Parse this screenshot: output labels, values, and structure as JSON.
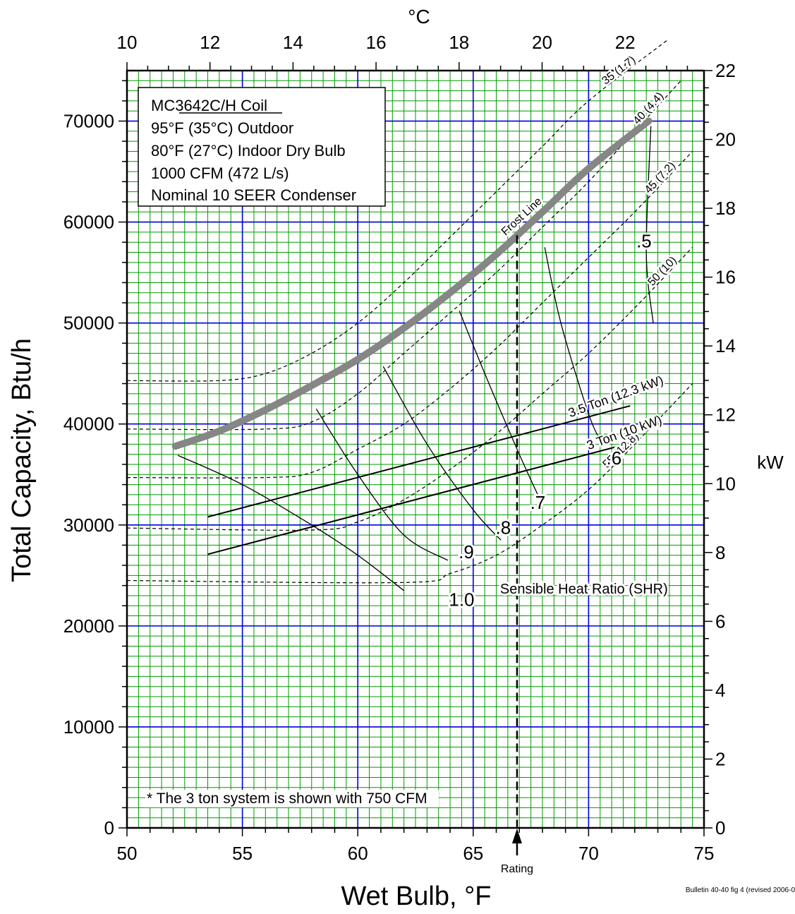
{
  "chart_data": {
    "type": "line",
    "x_axis": {
      "label": "Wet Bulb, °F",
      "range": [
        50,
        75
      ],
      "ticks": [
        50,
        55,
        60,
        65,
        70,
        75
      ]
    },
    "x2_axis": {
      "label": "°C",
      "range": [
        10,
        23.9
      ],
      "ticks": [
        10,
        12,
        14,
        16,
        18,
        20,
        22
      ]
    },
    "y_axis": {
      "label": "Total Capacity, Btu/h",
      "range": [
        0,
        75000
      ],
      "ticks": [
        0,
        10000,
        20000,
        30000,
        40000,
        50000,
        60000,
        70000
      ]
    },
    "y2_axis": {
      "label": "kW",
      "range": [
        0,
        22
      ],
      "ticks": [
        0,
        2,
        4,
        6,
        8,
        10,
        12,
        14,
        16,
        18,
        20,
        22
      ]
    },
    "grid": true,
    "info_box": [
      "MC3642C/H Coil",
      "95°F (35°C) Outdoor",
      "80°F (27°C) Indoor Dry Bulb",
      "1000 CFM (472 L/s)",
      "Nominal 10 SEER Condenser"
    ],
    "footnote": "* The 3 ton system is shown with 750 CFM",
    "bulletin": "Bulletin 40-40 fig 4 (revised 2006-0",
    "rating_label": "Rating",
    "rating_x": 66.9,
    "frost_line": {
      "label": "Frost Line",
      "x": [
        52.1,
        54,
        56,
        58,
        60,
        62,
        64,
        66,
        68,
        70,
        72.6
      ],
      "y": [
        37800,
        39300,
        41400,
        43800,
        46400,
        49500,
        53000,
        56800,
        61000,
        65300,
        70000
      ]
    },
    "evap_curves": [
      {
        "label": "35 (1.7)",
        "x": [
          50,
          54,
          56,
          58,
          60,
          62,
          64,
          66,
          68,
          70,
          73.4
        ],
        "y": [
          44300,
          44300,
          45000,
          47000,
          50000,
          54000,
          58500,
          63000,
          67500,
          72000,
          78000
        ]
      },
      {
        "label": "40 (4.4)",
        "x": [
          50,
          56,
          58,
          60,
          62,
          64,
          66,
          68,
          70,
          72,
          74
        ],
        "y": [
          39500,
          39500,
          40200,
          43000,
          47000,
          51000,
          55000,
          59500,
          64000,
          69000,
          74000
        ]
      },
      {
        "label": "45 (7.2)",
        "x": [
          50,
          56,
          58,
          60,
          62,
          64,
          66,
          68,
          70,
          72,
          74.5
        ],
        "y": [
          34700,
          34700,
          35200,
          37500,
          40000,
          43500,
          47500,
          52000,
          56500,
          61000,
          67000
        ]
      },
      {
        "label": "50 (10)",
        "x": [
          50,
          58,
          60,
          62,
          64,
          66,
          68,
          70,
          72,
          74.5
        ],
        "y": [
          29700,
          29500,
          30300,
          32500,
          35500,
          39000,
          43000,
          47000,
          51500,
          57500
        ]
      },
      {
        "label": "55 (12.8)",
        "x": [
          50,
          62,
          64,
          66,
          68,
          70,
          72,
          74.5
        ],
        "y": [
          24500,
          24300,
          25200,
          27000,
          30000,
          33500,
          38000,
          44000
        ]
      }
    ],
    "system_lines": [
      {
        "label": "3.5 Ton (12.3 kW)",
        "x": [
          53.5,
          71.8
        ],
        "y": [
          30800,
          41800
        ]
      },
      {
        "label": "3 Ton (10 kW)",
        "x": [
          53.5,
          71.8
        ],
        "y": [
          27100,
          38100
        ]
      }
    ],
    "shr_title": "Sensible Heat Ratio (SHR)",
    "shr_curves": [
      {
        "label": "1.0",
        "x": [
          52.2,
          55,
          58,
          60,
          62
        ],
        "y": [
          36900,
          34000,
          30000,
          27000,
          23500
        ]
      },
      {
        "label": ".9",
        "x": [
          58.2,
          60,
          62,
          63.9
        ],
        "y": [
          41500,
          35000,
          29000,
          26500
        ]
      },
      {
        "label": ".8",
        "x": [
          61.1,
          63,
          65,
          66.2
        ],
        "y": [
          45700,
          38000,
          31500,
          28500
        ]
      },
      {
        "label": ".7",
        "x": [
          64.4,
          65.5,
          67,
          68
        ],
        "y": [
          51200,
          45000,
          37000,
          32000
        ]
      },
      {
        "label": ".6",
        "x": [
          68.1,
          68.8,
          70,
          70.6
        ],
        "y": [
          57500,
          50000,
          41000,
          38000
        ]
      },
      {
        "label": ".5",
        "x": [
          72.7,
          72.5,
          72.8
        ],
        "y": [
          69500,
          57000,
          50000
        ]
      }
    ]
  }
}
